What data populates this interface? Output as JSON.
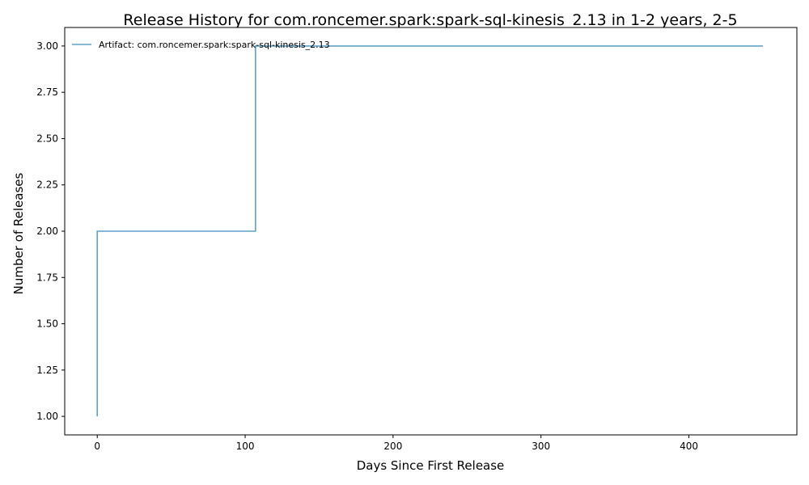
{
  "chart_data": {
    "type": "line",
    "title": "Release History for com.roncemer.spark:spark-sql-kinesis_2.13 in 1-2 years, 2-5",
    "xlabel": "Days Since First Release",
    "ylabel": "Number of Releases",
    "xlim": [
      -22,
      473
    ],
    "ylim": [
      0.9,
      3.1
    ],
    "x_ticks": [
      0,
      100,
      200,
      300,
      400
    ],
    "x_tick_labels": [
      "0",
      "100",
      "200",
      "300",
      "400"
    ],
    "y_ticks": [
      1.0,
      1.25,
      1.5,
      1.75,
      2.0,
      2.25,
      2.5,
      2.75,
      3.0
    ],
    "y_tick_labels": [
      "1.00",
      "1.25",
      "1.50",
      "1.75",
      "2.00",
      "2.25",
      "2.50",
      "2.75",
      "3.00"
    ],
    "grid": false,
    "legend_position": "top-left",
    "series": [
      {
        "name": "Artifact: com.roncemer.spark:spark-sql-kinesis_2.13",
        "color": "#5fa2c8",
        "step": "post",
        "points": [
          {
            "x": 0,
            "y": 1
          },
          {
            "x": 0,
            "y": 2
          },
          {
            "x": 107,
            "y": 2
          },
          {
            "x": 107,
            "y": 3
          },
          {
            "x": 450,
            "y": 3
          }
        ]
      }
    ]
  }
}
